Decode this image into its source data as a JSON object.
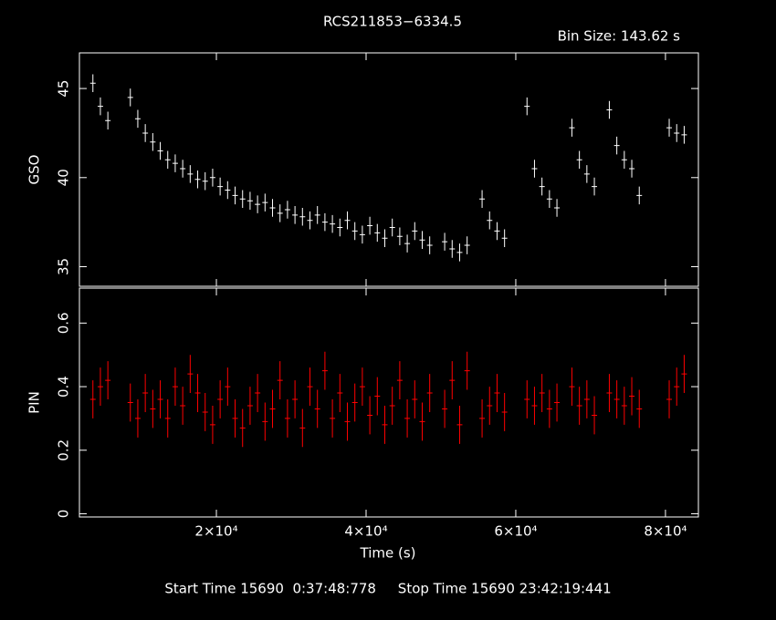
{
  "chart_data": {
    "type": "lightcurve",
    "title": "RCS211853−6334.5",
    "subtitle": "Bin Size: 143.62 s",
    "xlabel": "Time (s)",
    "footer": "Start Time 15690  0:37:48:778     Stop Time 15690 23:42:19:441",
    "xlim": [
      1700,
      84400
    ],
    "xticks": [
      {
        "value": 20000,
        "label": "2×10⁴"
      },
      {
        "value": 40000,
        "label": "4×10⁴"
      },
      {
        "value": 60000,
        "label": "6×10⁴"
      },
      {
        "value": 80000,
        "label": "8×10⁴"
      }
    ],
    "x": [
      3500,
      4500,
      5500,
      6500,
      7500,
      8500,
      9500,
      10500,
      11500,
      12500,
      13500,
      14500,
      15500,
      16500,
      17500,
      18500,
      19500,
      20500,
      21500,
      22500,
      23500,
      24500,
      25500,
      26500,
      27500,
      28500,
      29500,
      30500,
      31500,
      32500,
      33500,
      34500,
      35500,
      36500,
      37500,
      38500,
      39500,
      40500,
      41500,
      42500,
      43500,
      44500,
      45500,
      46500,
      47500,
      48500,
      49500,
      50500,
      51500,
      52500,
      53500,
      54500,
      55500,
      56500,
      57500,
      58500,
      59500,
      60500,
      61500,
      62500,
      63500,
      64500,
      65500,
      66500,
      67500,
      68500,
      69500,
      70500,
      71500,
      72500,
      73500,
      74500,
      75500,
      76500,
      77500,
      78500,
      79500,
      80500,
      81500,
      82500
    ],
    "series": [
      {
        "name": "GSO",
        "color": "#ffffff",
        "ylim": [
          33.9,
          47
        ],
        "yticks": [
          35,
          40,
          45
        ],
        "error": 0.5,
        "values": [
          45.3,
          44.0,
          43.2,
          null,
          null,
          44.5,
          43.3,
          42.5,
          42.0,
          41.5,
          41.0,
          40.8,
          40.5,
          40.2,
          39.9,
          39.8,
          40.0,
          39.5,
          39.3,
          39.0,
          38.8,
          38.7,
          38.5,
          38.6,
          38.3,
          38.0,
          38.2,
          37.9,
          37.8,
          37.6,
          37.9,
          37.5,
          37.4,
          37.2,
          37.6,
          37.0,
          36.8,
          37.3,
          36.9,
          36.6,
          37.2,
          36.7,
          36.3,
          37.0,
          36.5,
          36.2,
          null,
          36.4,
          36.0,
          35.8,
          36.2,
          null,
          38.8,
          37.6,
          37.0,
          36.6,
          null,
          null,
          44.0,
          40.5,
          39.5,
          38.8,
          38.3,
          null,
          42.8,
          41.0,
          40.2,
          39.5,
          null,
          43.8,
          41.8,
          41.0,
          40.5,
          39.0,
          null,
          null,
          null,
          42.8,
          42.5,
          42.4
        ]
      },
      {
        "name": "PIN",
        "color": "#ff0000",
        "ylim": [
          -0.01,
          0.71
        ],
        "yticks": [
          0,
          0.2,
          0.4,
          0.6
        ],
        "error": 0.06,
        "values": [
          0.36,
          0.4,
          0.42,
          null,
          null,
          0.35,
          0.3,
          0.38,
          0.33,
          0.36,
          0.3,
          0.4,
          0.34,
          0.44,
          0.38,
          0.32,
          0.28,
          0.36,
          0.4,
          0.3,
          0.27,
          0.34,
          0.38,
          0.29,
          0.33,
          0.42,
          0.3,
          0.36,
          0.27,
          0.4,
          0.33,
          0.45,
          0.3,
          0.38,
          0.29,
          0.35,
          0.4,
          0.31,
          0.37,
          0.28,
          0.34,
          0.42,
          0.3,
          0.36,
          0.29,
          0.38,
          null,
          0.33,
          0.42,
          0.28,
          0.45,
          null,
          0.3,
          0.34,
          0.38,
          0.32,
          null,
          null,
          0.36,
          0.34,
          0.38,
          0.33,
          0.35,
          null,
          0.4,
          0.34,
          0.36,
          0.31,
          null,
          0.38,
          0.36,
          0.34,
          0.37,
          0.33,
          null,
          null,
          null,
          0.36,
          0.4,
          0.44
        ]
      }
    ]
  }
}
